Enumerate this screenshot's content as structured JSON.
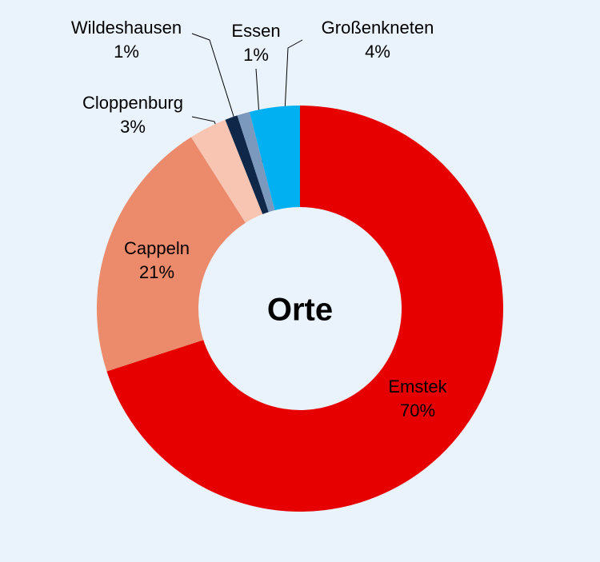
{
  "chart_data": {
    "type": "donut",
    "title": "Orte",
    "categories": [
      "Emstek",
      "Cappeln",
      "Cloppenburg",
      "Wildeshausen",
      "Essen",
      "Großenkneten"
    ],
    "values": [
      70,
      21,
      3,
      1,
      1,
      4
    ],
    "value_labels": [
      "70%",
      "21%",
      "3%",
      "1%",
      "1%",
      "4%"
    ],
    "colors": [
      "#e60000",
      "#ec8a6c",
      "#f9c5b3",
      "#0f2748",
      "#7b98bd",
      "#00b0f0"
    ]
  }
}
